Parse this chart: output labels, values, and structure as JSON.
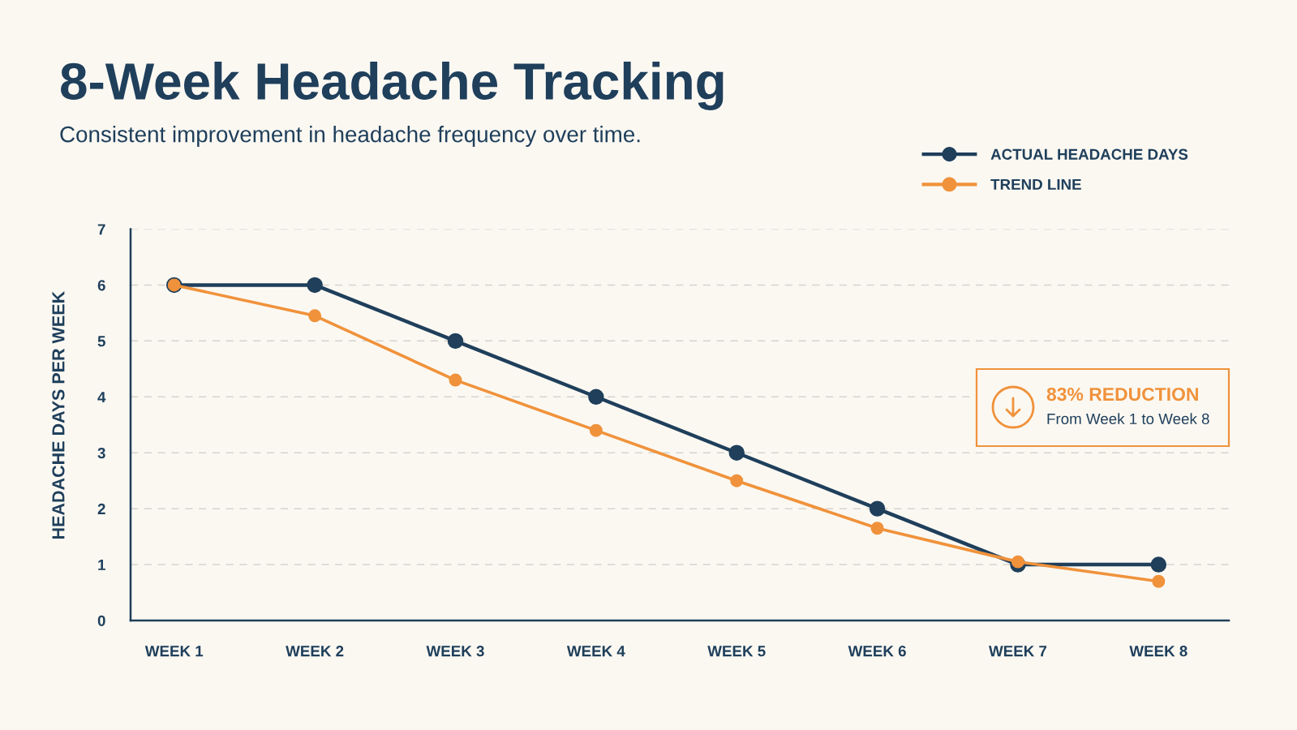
{
  "chart_data": {
    "type": "line",
    "title": "8-Week Headache Tracking",
    "subtitle": "Consistent improvement in headache frequency over time.",
    "ylabel": "HEADACHE DAYS PER WEEK",
    "categories": [
      "WEEK 1",
      "WEEK 2",
      "WEEK 3",
      "WEEK 4",
      "WEEK 5",
      "WEEK 6",
      "WEEK 7",
      "WEEK 8"
    ],
    "series": [
      {
        "name": "ACTUAL HEADACHE DAYS",
        "color": "#1f3f5b",
        "values": [
          6,
          6,
          5,
          4,
          3,
          2,
          1,
          1
        ]
      },
      {
        "name": "TREND LINE",
        "color": "#f0923b",
        "values": [
          6.0,
          5.45,
          4.3,
          3.4,
          2.5,
          1.65,
          1.05,
          0.7
        ]
      }
    ],
    "ylim": [
      0,
      7
    ],
    "yticks": [
      0,
      1,
      2,
      3,
      4,
      5,
      6,
      7
    ],
    "grid": "y",
    "legend": "top right",
    "marker": "circle",
    "line_style": "solid",
    "annotations": [
      "83% REDUCTION",
      "From Week 1 to Week 8"
    ]
  }
}
